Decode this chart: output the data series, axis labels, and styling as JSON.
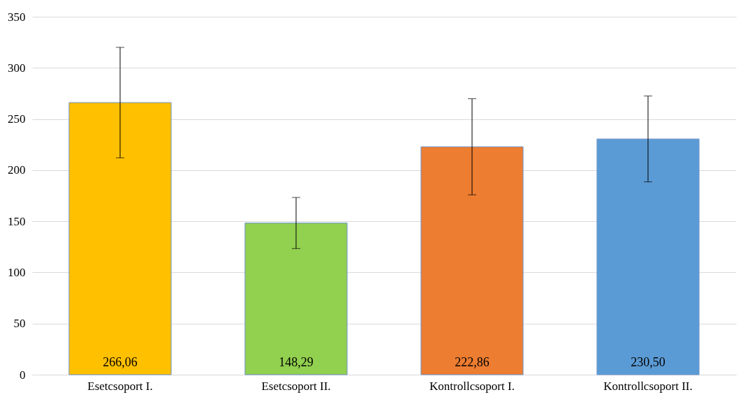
{
  "chart_data": {
    "type": "bar",
    "categories": [
      "Esetcsoport I.",
      "Esetcsoport II.",
      "Kontrollcsoport I.",
      "Kontrollcsoport II."
    ],
    "values": [
      266.06,
      148.29,
      222.86,
      230.5
    ],
    "colors": [
      "#ffc000",
      "#92d050",
      "#ed7d31",
      "#5b9bd5"
    ],
    "errors": [
      54,
      25,
      47,
      42
    ],
    "value_labels": [
      "266,06",
      "148,29",
      "222,86",
      "230,50"
    ],
    "ylim": [
      0,
      350
    ],
    "yticks": [
      0,
      50,
      100,
      150,
      200,
      250,
      300,
      350
    ],
    "grid": "y"
  }
}
